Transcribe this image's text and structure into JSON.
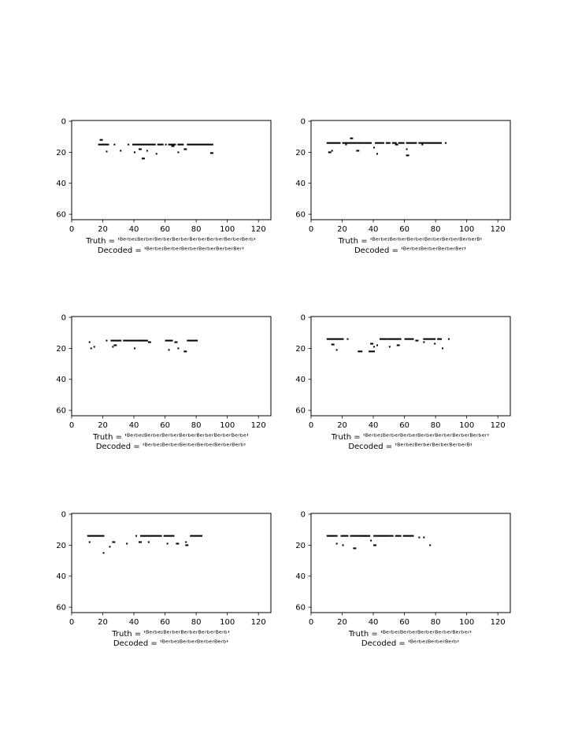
{
  "figure": {
    "background": "#ffffff",
    "text_color": "#000000"
  },
  "chart_data": [
    {
      "type": "heatmap",
      "colormap": "binary",
      "xlim": [
        0,
        128
      ],
      "ylim": [
        64,
        0
      ],
      "xticks": [
        0,
        20,
        40,
        60,
        80,
        100,
        120
      ],
      "yticks": [
        0,
        20,
        40,
        60
      ],
      "truth": "Truth = 'ᴮᵉʳᵇᵉᶦᴮᵉʳᵇᵉʳᴮᵉʳᵇᵉʳᴮᵉʳᵇᵉʳᴮᵉʳᵇᵉʳᴮᵉʳᵇᵉʳᴮᵉʳᵇᵉʳᴮᵉʳᵇ'",
      "decoded": "Decoded = 'ᴮᵉʳᵇᵉᶦᴮᵉʳᵇᵉʳᴮᵉʳᵇᵉʳᴮᵉʳᵇᵉʳᴮᵉʳᵇᵉʳᴮᵉʳ'",
      "segments": [
        [
          17,
          24,
          15
        ],
        [
          18,
          20,
          12
        ],
        [
          22,
          23,
          19.5
        ],
        [
          27,
          28,
          15
        ],
        [
          31,
          32,
          19
        ],
        [
          36,
          37,
          15
        ],
        [
          39,
          54,
          15
        ],
        [
          40,
          41,
          20
        ],
        [
          43,
          45,
          18
        ],
        [
          45,
          47,
          24
        ],
        [
          48,
          49,
          19
        ],
        [
          55,
          59,
          15
        ],
        [
          54,
          55,
          21
        ],
        [
          60,
          61,
          15
        ],
        [
          62,
          67,
          15
        ],
        [
          64,
          66,
          16
        ],
        [
          68,
          72,
          15
        ],
        [
          68,
          69,
          20
        ],
        [
          72,
          74,
          18
        ],
        [
          74,
          91,
          15
        ],
        [
          89,
          91,
          20.5
        ]
      ]
    },
    {
      "type": "heatmap",
      "colormap": "binary",
      "xlim": [
        0,
        128
      ],
      "ylim": [
        64,
        0
      ],
      "xticks": [
        0,
        20,
        40,
        60,
        80,
        100,
        120
      ],
      "yticks": [
        0,
        20,
        40,
        60
      ],
      "truth": "Truth = 'ᴮᵉʳᵇᵉᶦᴮᵉʳᵇᵉʳᴮᵉʳᵇᵉʳᴮᵉʳᵇᵉʳᴮᵉʳᵇᵉʳᴮᵉʳᵇᵉʳᴮ'",
      "decoded": "Decoded = 'ᴮᵉʳᵇᵉᶦᴮᵉʳᵇᵉʳᴮᵉʳᵇᵉʳᴮᵉʳ'",
      "segments": [
        [
          10,
          19,
          14
        ],
        [
          11,
          13,
          20
        ],
        [
          13,
          14,
          19
        ],
        [
          20,
          24,
          14
        ],
        [
          22,
          23,
          15
        ],
        [
          25,
          27,
          11
        ],
        [
          24,
          34,
          14
        ],
        [
          29,
          31,
          19
        ],
        [
          34,
          39,
          14
        ],
        [
          40,
          41,
          17
        ],
        [
          41,
          47,
          14
        ],
        [
          42,
          43,
          21
        ],
        [
          48,
          51,
          14
        ],
        [
          52,
          55,
          14
        ],
        [
          54,
          56,
          15
        ],
        [
          56,
          60,
          14
        ],
        [
          61,
          68,
          14
        ],
        [
          61,
          62,
          18
        ],
        [
          61,
          63,
          22
        ],
        [
          69,
          73,
          14
        ],
        [
          71,
          72,
          15
        ],
        [
          73,
          84,
          14
        ],
        [
          86,
          87,
          14
        ]
      ]
    },
    {
      "type": "heatmap",
      "colormap": "binary",
      "xlim": [
        0,
        128
      ],
      "ylim": [
        64,
        0
      ],
      "xticks": [
        0,
        20,
        40,
        60,
        80,
        100,
        120
      ],
      "yticks": [
        0,
        20,
        40,
        60
      ],
      "truth": "Truth = 'ᴮᵉʳᵇᵉᶦᴮᵉʳᵇᵉʳᴮᵉʳᵇᵉʳᴮᵉʳᵇᵉʳᴮᵉʳᵇᵉʳᴮᵉʳᵇᵉʳᴮᵉʳᵇᵉ'",
      "decoded": "Decoded = 'ᴮᵉʳᵇᵉᶦᴮᵉʳᵇᵉʳᴮᵉʳᵇᵉʳᴮᵉʳᵇᵉʳᴮᵉʳᵇᵉʳᴮᵉʳᵇ'",
      "segments": [
        [
          11,
          12,
          16
        ],
        [
          12,
          13,
          20
        ],
        [
          14,
          15,
          19
        ],
        [
          22,
          23,
          15
        ],
        [
          25,
          32,
          15
        ],
        [
          26,
          27,
          19
        ],
        [
          27,
          29,
          18
        ],
        [
          33,
          37,
          15
        ],
        [
          37,
          46,
          15
        ],
        [
          40,
          41,
          20
        ],
        [
          45,
          49,
          15
        ],
        [
          49,
          51,
          16
        ],
        [
          60,
          65,
          15
        ],
        [
          62,
          63,
          21
        ],
        [
          66,
          68,
          16
        ],
        [
          68,
          69,
          20
        ],
        [
          72,
          74,
          22
        ],
        [
          74,
          78,
          15
        ],
        [
          78,
          81,
          15
        ]
      ]
    },
    {
      "type": "heatmap",
      "colormap": "binary",
      "xlim": [
        0,
        128
      ],
      "ylim": [
        64,
        0
      ],
      "xticks": [
        0,
        20,
        40,
        60,
        80,
        100,
        120
      ],
      "yticks": [
        0,
        20,
        40,
        60
      ],
      "truth": "Truth = 'ᴮᵉʳᵇᵉᶦᴮᵉʳᵇᵉʳᴮᵉʳᵇᵉʳᴮᵉʳᵇᵉʳᴮᵉʳᵇᵉʳᴮᵉʳᵇᵉʳᴮᵉʳᵇᵉʳ'",
      "decoded": "Decoded = 'ᴮᵉʳᵇᵉᶦᴮᵉʳᵇᵉʳᴮᵉʳᵇᵉʳᴮᵉʳᵇᵉʳᴮ'",
      "segments": [
        [
          10,
          21,
          14
        ],
        [
          13,
          15,
          17.5
        ],
        [
          16,
          17,
          21
        ],
        [
          23,
          24,
          14
        ],
        [
          30,
          33,
          22
        ],
        [
          37,
          41,
          22
        ],
        [
          38,
          40,
          17
        ],
        [
          40,
          41,
          19
        ],
        [
          42,
          43,
          18
        ],
        [
          44,
          49,
          14
        ],
        [
          49,
          58,
          14
        ],
        [
          50,
          51,
          19
        ],
        [
          55,
          57,
          18
        ],
        [
          60,
          62,
          14
        ],
        [
          62,
          66,
          14
        ],
        [
          67,
          69,
          15
        ],
        [
          72,
          73,
          16
        ],
        [
          72,
          80,
          14
        ],
        [
          79,
          80,
          17
        ],
        [
          81,
          84,
          14
        ],
        [
          84,
          85,
          20
        ],
        [
          88,
          89,
          14
        ]
      ]
    },
    {
      "type": "heatmap",
      "colormap": "binary",
      "xlim": [
        0,
        128
      ],
      "ylim": [
        64,
        0
      ],
      "xticks": [
        0,
        20,
        40,
        60,
        80,
        100,
        120
      ],
      "yticks": [
        0,
        20,
        40,
        60
      ],
      "truth": "Truth = 'ᴮᵉʳᵇᵉᶦᴮᵉʳᵇᵉʳᴮᵉʳᵇᵉʳᴮᵉʳᵇᵉʳᴮᵉʳᵇ'",
      "decoded": "Decoded = 'ᴮᵉʳᵇᵉᶦᴮᵉʳᵇᵉʳᴮᵉʳᵇᵉʳᴮᵉʳᵇ'",
      "segments": [
        [
          10,
          21,
          14
        ],
        [
          11,
          12,
          18
        ],
        [
          20,
          21,
          25
        ],
        [
          24,
          25,
          21
        ],
        [
          26,
          28,
          18
        ],
        [
          35,
          36,
          19
        ],
        [
          41,
          42,
          14
        ],
        [
          43,
          45,
          18
        ],
        [
          44,
          58,
          14
        ],
        [
          49,
          50,
          18
        ],
        [
          59,
          66,
          14
        ],
        [
          61,
          62,
          19
        ],
        [
          67,
          69,
          19
        ],
        [
          73,
          74,
          18
        ],
        [
          73,
          75,
          20
        ],
        [
          76,
          81,
          14
        ],
        [
          81,
          84,
          14
        ]
      ]
    },
    {
      "type": "heatmap",
      "colormap": "binary",
      "xlim": [
        0,
        128
      ],
      "ylim": [
        64,
        0
      ],
      "xticks": [
        0,
        20,
        40,
        60,
        80,
        100,
        120
      ],
      "yticks": [
        0,
        20,
        40,
        60
      ],
      "truth": "Truth = 'ᴮᵉʳᵇᵉᶦᴮᵉʳᵇᵉʳᴮᵉʳᵇᵉʳᴮᵉʳᵇᵉʳᴮᵉʳᵇᵉʳ'",
      "decoded": "Decoded = 'ᴮᵉʳᵇᵉᶦᴮᵉʳᵇᵉʳᴮᵉʳᵇ'",
      "segments": [
        [
          10,
          17,
          14
        ],
        [
          16,
          17,
          19
        ],
        [
          19,
          24,
          14
        ],
        [
          20,
          21,
          20
        ],
        [
          25,
          36,
          14
        ],
        [
          27,
          29,
          22
        ],
        [
          34,
          38,
          14
        ],
        [
          38,
          39,
          17
        ],
        [
          40,
          42,
          20
        ],
        [
          40,
          50,
          14
        ],
        [
          50,
          53,
          14
        ],
        [
          54,
          58,
          14
        ],
        [
          59,
          66,
          14
        ],
        [
          69,
          70,
          15
        ],
        [
          72,
          73,
          15
        ],
        [
          76,
          77,
          20
        ]
      ]
    }
  ]
}
